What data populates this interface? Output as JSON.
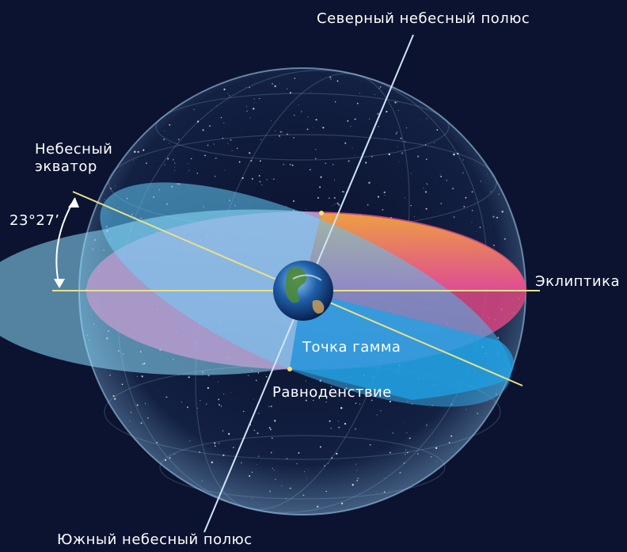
{
  "labels": {
    "north_pole": "Северный небесный полюс",
    "celestial_equator_line1": "Небесный",
    "celestial_equator_line2": "экватор",
    "tilt_angle": "23°27’",
    "ecliptic": "Эклиптика",
    "gamma_point": "Точка гамма",
    "equinox": "Равноденствие",
    "south_pole": "Южный небесный полюс"
  },
  "colors": {
    "background": "#0b1330",
    "sphere_edge": "#9fc8e8",
    "equator_plane": "#4fc3f7",
    "ecliptic_pink": "#e2468f",
    "ecliptic_orange": "#f2a93a",
    "axis_line": "#cfe6f5",
    "ecliptic_line": "#e9e08a",
    "earth_ocean": "#1f5fa8",
    "earth_land": "#4d8a3a"
  }
}
